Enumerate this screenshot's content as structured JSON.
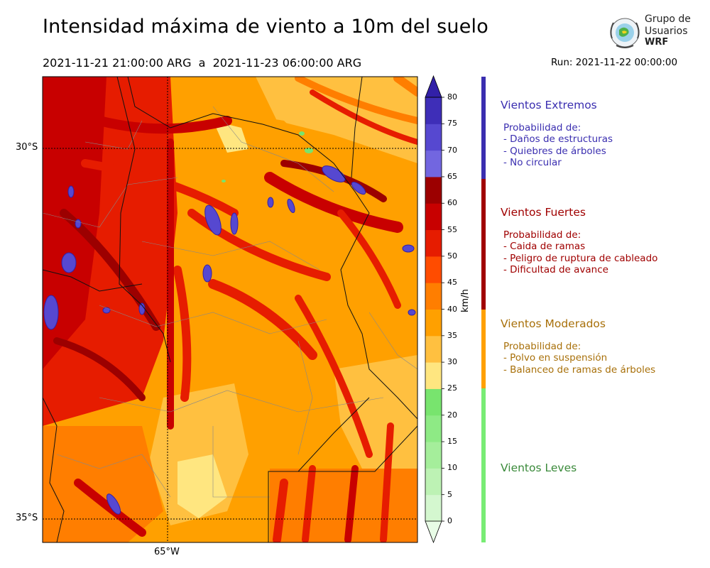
{
  "header": {
    "title": "Intensidad máxima de viento a 10m del suelo",
    "period": "2021-11-21 21:00:00 ARG  a  2021-11-23 06:00:00 ARG",
    "run": "Run: 2021-11-22 00:00:00"
  },
  "logo": {
    "line1": "Grupo de",
    "line2": "Usuarios",
    "line3": "WRF"
  },
  "map": {
    "lat_labels": [
      "30°S",
      "35°S"
    ],
    "lon_labels": [
      "65°W"
    ]
  },
  "colorbar": {
    "unit": "km/h",
    "ticks": [
      "0",
      "5",
      "10",
      "15",
      "20",
      "25",
      "30",
      "35",
      "40",
      "45",
      "50",
      "55",
      "60",
      "65",
      "70",
      "75",
      "80"
    ],
    "colors": [
      "#e8fce6",
      "#d4f7cf",
      "#bdf2b4",
      "#a5ee9b",
      "#8eea85",
      "#78e46e",
      "#ffe680",
      "#ffc040",
      "#ffa000",
      "#ff7e00",
      "#ff4c00",
      "#e61c00",
      "#c80000",
      "#9c0000",
      "#7266e0",
      "#5648d0",
      "#3e2eb8",
      "#3220a8"
    ],
    "cmin": 0,
    "cmax": 80,
    "step": 5
  },
  "categories": [
    {
      "title": "Vientos Extremos",
      "color": "#3a2eb0",
      "bar_color": "#3a2eb0",
      "lines": [
        " Probabilidad de:",
        "- Daños de estructuras",
        "- Quiebres de árboles",
        "- No circular"
      ]
    },
    {
      "title": "Vientos Fuertes",
      "color": "#a00000",
      "bar_color": "#a00000",
      "lines": [
        " Probabilidad de:",
        "- Caida de ramas",
        "- Peligro de ruptura de cableado",
        "- Dificultad de avance"
      ]
    },
    {
      "title": "Vientos Moderados",
      "color": "#a8700a",
      "bar_color": "#ffa000",
      "lines": [
        " Probabilidad de:",
        "- Polvo en suspensión",
        "- Balanceo de ramas de árboles"
      ]
    },
    {
      "title": "Vientos Leves",
      "color": "#3a8a3a",
      "bar_color": "#78ec74",
      "lines": []
    }
  ]
}
